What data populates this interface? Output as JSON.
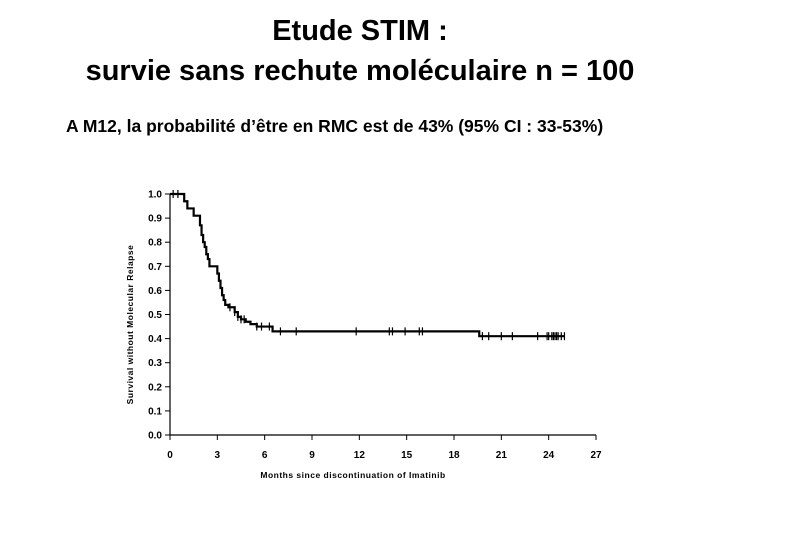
{
  "slide": {
    "title_line1": "Etude STIM :",
    "title_line2": "survie sans rechute moléculaire n = 100",
    "subtitle": "A M12, la probabilité d’être en RMC est de 43% (95% CI : 33-53%)"
  },
  "chart_data": {
    "type": "line",
    "step": true,
    "xlabel": "Months since discontinuation of Imatinib",
    "ylabel": "Survival without Molecular Relapse",
    "xlim": [
      0,
      27
    ],
    "ylim": [
      0,
      1
    ],
    "x_ticks": [
      "0",
      "3",
      "6",
      "9",
      "12",
      "15",
      "18",
      "21",
      "24",
      "27"
    ],
    "y_ticks": [
      "0.0",
      "0.1",
      "0.2",
      "0.3",
      "0.4",
      "0.5",
      "0.6",
      "0.7",
      "0.8",
      "0.9",
      "1.0"
    ],
    "grid": false,
    "x": [
      0,
      0.9,
      1.1,
      1.5,
      1.9,
      2.0,
      2.1,
      2.2,
      2.3,
      2.4,
      2.5,
      2.6,
      3.0,
      3.1,
      3.2,
      3.3,
      3.4,
      3.5,
      3.7,
      3.9,
      4.1,
      4.3,
      4.5,
      4.8,
      5.1,
      5.5,
      6.0,
      6.5,
      19.6,
      25.0
    ],
    "y": [
      1.0,
      0.97,
      0.94,
      0.91,
      0.87,
      0.83,
      0.8,
      0.78,
      0.75,
      0.73,
      0.7,
      0.7,
      0.67,
      0.64,
      0.61,
      0.58,
      0.56,
      0.54,
      0.53,
      0.53,
      0.51,
      0.49,
      0.48,
      0.47,
      0.46,
      0.45,
      0.45,
      0.43,
      0.41,
      0.41
    ],
    "censored": [
      {
        "x": 0.2,
        "y": 1.0
      },
      {
        "x": 0.5,
        "y": 1.0
      },
      {
        "x": 3.8,
        "y": 0.53
      },
      {
        "x": 4.1,
        "y": 0.51
      },
      {
        "x": 4.3,
        "y": 0.49
      },
      {
        "x": 4.5,
        "y": 0.48
      },
      {
        "x": 4.7,
        "y": 0.48
      },
      {
        "x": 5.5,
        "y": 0.45
      },
      {
        "x": 5.8,
        "y": 0.45
      },
      {
        "x": 6.3,
        "y": 0.45
      },
      {
        "x": 7.0,
        "y": 0.43
      },
      {
        "x": 8.0,
        "y": 0.43
      },
      {
        "x": 11.8,
        "y": 0.43
      },
      {
        "x": 13.9,
        "y": 0.43
      },
      {
        "x": 14.1,
        "y": 0.43
      },
      {
        "x": 14.9,
        "y": 0.43
      },
      {
        "x": 15.8,
        "y": 0.43
      },
      {
        "x": 16.0,
        "y": 0.43
      },
      {
        "x": 19.8,
        "y": 0.41
      },
      {
        "x": 20.2,
        "y": 0.41
      },
      {
        "x": 21.0,
        "y": 0.41
      },
      {
        "x": 21.7,
        "y": 0.41
      },
      {
        "x": 23.3,
        "y": 0.41
      },
      {
        "x": 23.9,
        "y": 0.41
      },
      {
        "x": 24.0,
        "y": 0.41
      },
      {
        "x": 24.2,
        "y": 0.41
      },
      {
        "x": 24.3,
        "y": 0.41
      },
      {
        "x": 24.4,
        "y": 0.41
      },
      {
        "x": 24.5,
        "y": 0.41
      },
      {
        "x": 24.6,
        "y": 0.41
      },
      {
        "x": 24.8,
        "y": 0.41
      },
      {
        "x": 25.0,
        "y": 0.41
      }
    ]
  }
}
